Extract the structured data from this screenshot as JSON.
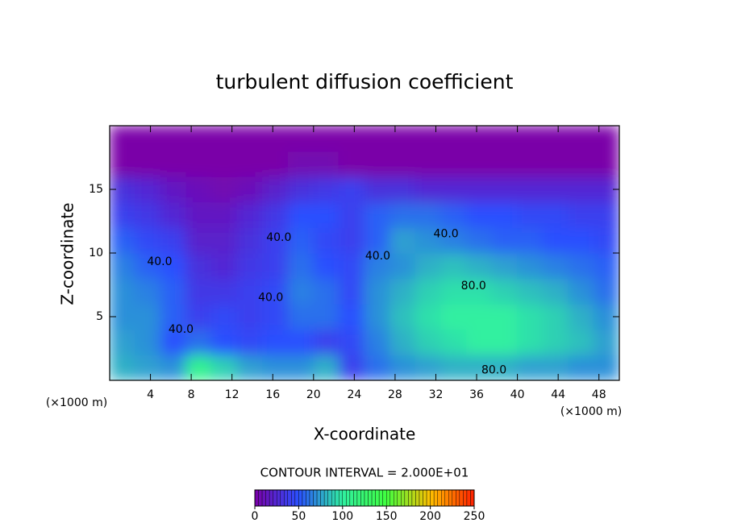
{
  "chart_data": {
    "type": "heatmap",
    "title": "turbulent diffusion coefficient",
    "x_label": "X-coordinate",
    "y_label": "Z-coordinate",
    "x_unit_labels": [
      "(×1000 m)",
      "(×1000 m)"
    ],
    "contour_interval": "CONTOUR INTERVAL = 2.000E+01",
    "xlim": [
      0,
      50
    ],
    "ylim": [
      0,
      20
    ],
    "xticks": [
      4,
      8,
      12,
      16,
      20,
      24,
      28,
      32,
      36,
      40,
      44,
      48
    ],
    "yticks": [
      5,
      10,
      15
    ],
    "x": [
      1.25,
      3.75,
      6.25,
      8.75,
      11.25,
      13.75,
      16.25,
      18.75,
      21.25,
      23.75,
      26.25,
      28.75,
      31.25,
      33.75,
      36.25,
      38.75,
      41.25,
      43.75,
      46.25,
      48.75
    ],
    "y": [
      1,
      3,
      5,
      7,
      9,
      11,
      13,
      15,
      17,
      19
    ],
    "z": [
      [
        80,
        75,
        70,
        110,
        90,
        75,
        70,
        70,
        80,
        40,
        60,
        70,
        75,
        80,
        80,
        80,
        75,
        75,
        70,
        70
      ],
      [
        75,
        70,
        50,
        60,
        50,
        45,
        50,
        50,
        40,
        45,
        65,
        80,
        90,
        95,
        100,
        100,
        95,
        90,
        85,
        75
      ],
      [
        70,
        70,
        55,
        40,
        45,
        40,
        45,
        60,
        60,
        50,
        70,
        85,
        95,
        100,
        100,
        100,
        95,
        90,
        80,
        70
      ],
      [
        70,
        65,
        55,
        35,
        35,
        40,
        45,
        65,
        60,
        45,
        70,
        80,
        90,
        95,
        95,
        90,
        85,
        80,
        70,
        60
      ],
      [
        65,
        55,
        50,
        30,
        25,
        35,
        40,
        60,
        50,
        45,
        65,
        70,
        80,
        85,
        80,
        75,
        70,
        65,
        60,
        55
      ],
      [
        55,
        45,
        40,
        20,
        20,
        30,
        40,
        55,
        45,
        40,
        55,
        75,
        70,
        65,
        60,
        55,
        55,
        50,
        50,
        45
      ],
      [
        40,
        35,
        25,
        15,
        15,
        25,
        35,
        50,
        50,
        40,
        55,
        60,
        60,
        55,
        50,
        50,
        45,
        45,
        40,
        40
      ],
      [
        30,
        25,
        15,
        10,
        5,
        10,
        20,
        30,
        35,
        40,
        30,
        30,
        25,
        25,
        25,
        25,
        25,
        25,
        25,
        25
      ],
      [
        0,
        0,
        0,
        0,
        0,
        0,
        0,
        5,
        5,
        0,
        0,
        0,
        0,
        0,
        0,
        0,
        0,
        0,
        0,
        0
      ],
      [
        0,
        0,
        0,
        0,
        0,
        0,
        0,
        0,
        0,
        0,
        0,
        0,
        0,
        0,
        0,
        0,
        0,
        0,
        0,
        0
      ]
    ],
    "contour_labels": [
      {
        "value": 40,
        "label": "40.0",
        "x": 4.9,
        "z": 9.3
      },
      {
        "value": 40,
        "label": "40.0",
        "x": 16.6,
        "z": 11.2
      },
      {
        "value": 40,
        "label": "40.0",
        "x": 15.8,
        "z": 6.5
      },
      {
        "value": 40,
        "label": "40.0",
        "x": 7,
        "z": 4
      },
      {
        "value": 40,
        "label": "40.0",
        "x": 26.3,
        "z": 9.75
      },
      {
        "value": 40,
        "label": "40.0",
        "x": 33,
        "z": 11.5
      },
      {
        "value": 80,
        "label": "80.0",
        "x": 35.7,
        "z": 7.4
      },
      {
        "value": 80,
        "label": "80.0",
        "x": 37.7,
        "z": 0.8
      }
    ],
    "clim": [
      0,
      250
    ],
    "colorbar_ticks": [
      0,
      50,
      100,
      150,
      200,
      250
    ],
    "colors": [
      "#7a00a8",
      "#2a50ff",
      "#30f0a0",
      "#40ff40",
      "#ffc000",
      "#ff2000"
    ]
  }
}
